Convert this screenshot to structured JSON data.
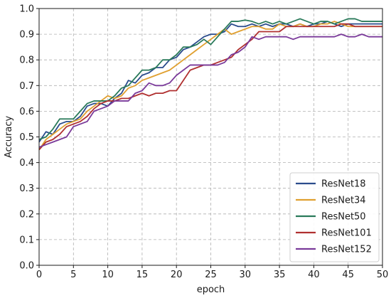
{
  "chart_data": {
    "type": "line",
    "xlabel": "epoch",
    "ylabel": "Accuracy",
    "xlim": [
      0,
      50
    ],
    "ylim": [
      0.0,
      1.0
    ],
    "xticks": [
      "0",
      "5",
      "10",
      "15",
      "20",
      "25",
      "30",
      "35",
      "40",
      "45",
      "50"
    ],
    "yticks": [
      "0.0",
      "0.1",
      "0.2",
      "0.3",
      "0.4",
      "0.5",
      "0.6",
      "0.7",
      "0.8",
      "0.9",
      "1.0"
    ],
    "grid": true,
    "legend_position": "bottom-right",
    "x": [
      0,
      1,
      2,
      3,
      4,
      5,
      6,
      7,
      8,
      9,
      10,
      11,
      12,
      13,
      14,
      15,
      16,
      17,
      18,
      19,
      20,
      21,
      22,
      23,
      24,
      25,
      26,
      27,
      28,
      29,
      30,
      31,
      32,
      33,
      34,
      35,
      36,
      37,
      38,
      39,
      40,
      41,
      42,
      43,
      44,
      45,
      46,
      47,
      48,
      49,
      50
    ],
    "series": [
      {
        "name": "ResNet18",
        "color": "#2b4c8c",
        "values": [
          0.48,
          0.52,
          0.51,
          0.55,
          0.56,
          0.56,
          0.58,
          0.62,
          0.63,
          0.63,
          0.62,
          0.65,
          0.67,
          0.72,
          0.71,
          0.74,
          0.75,
          0.77,
          0.77,
          0.8,
          0.81,
          0.84,
          0.85,
          0.87,
          0.89,
          0.9,
          0.9,
          0.91,
          0.94,
          0.93,
          0.93,
          0.94,
          0.93,
          0.94,
          0.93,
          0.94,
          0.94,
          0.93,
          0.94,
          0.93,
          0.94,
          0.94,
          0.95,
          0.94,
          0.93,
          0.94,
          0.94,
          0.94,
          0.94,
          0.94,
          0.94
        ]
      },
      {
        "name": "ResNet34",
        "color": "#e0a030",
        "values": [
          0.45,
          0.49,
          0.51,
          0.53,
          0.55,
          0.56,
          0.57,
          0.6,
          0.62,
          0.64,
          0.66,
          0.65,
          0.66,
          0.69,
          0.7,
          0.72,
          0.73,
          0.74,
          0.75,
          0.76,
          0.78,
          0.8,
          0.82,
          0.84,
          0.86,
          0.88,
          0.9,
          0.92,
          0.9,
          0.91,
          0.92,
          0.93,
          0.93,
          0.92,
          0.92,
          0.94,
          0.93,
          0.93,
          0.94,
          0.93,
          0.93,
          0.94,
          0.94,
          0.95,
          0.94,
          0.93,
          0.93,
          0.93,
          0.93,
          0.93,
          0.93
        ]
      },
      {
        "name": "ResNet50",
        "color": "#2a7a5a",
        "values": [
          0.49,
          0.5,
          0.53,
          0.57,
          0.57,
          0.57,
          0.6,
          0.63,
          0.64,
          0.64,
          0.64,
          0.66,
          0.69,
          0.7,
          0.73,
          0.76,
          0.76,
          0.77,
          0.8,
          0.8,
          0.82,
          0.85,
          0.85,
          0.86,
          0.88,
          0.86,
          0.89,
          0.92,
          0.95,
          0.95,
          0.955,
          0.95,
          0.94,
          0.95,
          0.94,
          0.95,
          0.94,
          0.95,
          0.96,
          0.95,
          0.94,
          0.95,
          0.95,
          0.94,
          0.95,
          0.96,
          0.96,
          0.95,
          0.95,
          0.95,
          0.95
        ]
      },
      {
        "name": "ResNet101",
        "color": "#b03030",
        "values": [
          0.45,
          0.48,
          0.49,
          0.51,
          0.54,
          0.55,
          0.56,
          0.58,
          0.61,
          0.63,
          0.64,
          0.64,
          0.65,
          0.65,
          0.66,
          0.67,
          0.66,
          0.67,
          0.67,
          0.68,
          0.68,
          0.72,
          0.76,
          0.77,
          0.78,
          0.78,
          0.79,
          0.8,
          0.81,
          0.84,
          0.86,
          0.88,
          0.91,
          0.91,
          0.91,
          0.91,
          0.93,
          0.93,
          0.93,
          0.93,
          0.93,
          0.93,
          0.93,
          0.93,
          0.94,
          0.94,
          0.93,
          0.93,
          0.93,
          0.93,
          0.93
        ]
      },
      {
        "name": "ResNet152",
        "color": "#7a3a9a",
        "values": [
          0.46,
          0.47,
          0.48,
          0.49,
          0.5,
          0.54,
          0.55,
          0.56,
          0.6,
          0.61,
          0.62,
          0.64,
          0.64,
          0.64,
          0.67,
          0.68,
          0.71,
          0.7,
          0.7,
          0.71,
          0.74,
          0.76,
          0.78,
          0.78,
          0.78,
          0.78,
          0.78,
          0.79,
          0.82,
          0.83,
          0.85,
          0.89,
          0.88,
          0.89,
          0.89,
          0.89,
          0.89,
          0.88,
          0.89,
          0.89,
          0.89,
          0.89,
          0.89,
          0.89,
          0.9,
          0.89,
          0.89,
          0.9,
          0.89,
          0.89,
          0.89
        ]
      }
    ]
  }
}
